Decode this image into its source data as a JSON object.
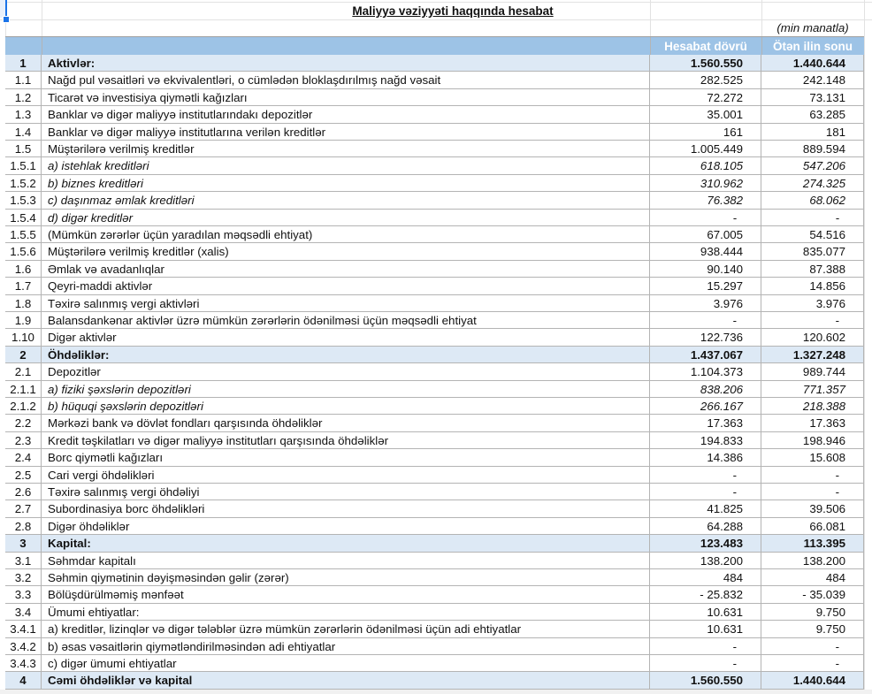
{
  "title": "Maliyyə vəziyyəti haqqında hesabat",
  "unit": "(min manatla)",
  "colors": {
    "header_bg": "#9dc3e6",
    "section_bg": "#dde9f5",
    "grid": "#b4b4b4"
  },
  "header": {
    "current": "Hesabat dövrü",
    "previous": "Ötən ilin sonu"
  },
  "rows": [
    {
      "num": "1",
      "label": "Aktivlər:",
      "current": "1.560.550",
      "previous": "1.440.644",
      "style": "section"
    },
    {
      "num": "1.1",
      "label": "Nağd pul vəsaitləri və  ekvivalentləri, o cümlədən bloklaşdırılmış nağd vəsait",
      "current": "282.525",
      "previous": "242.148"
    },
    {
      "num": "1.2",
      "label": "Ticarət və investisiya qiymətli kağızları",
      "current": "72.272",
      "previous": "73.131"
    },
    {
      "num": "1.3",
      "label": "Banklar və digər maliyyə institutlarındakı depozitlər",
      "current": "35.001",
      "previous": "63.285"
    },
    {
      "num": "1.4",
      "label": "Banklar və digər maliyyə institutlarına verilən kreditlər",
      "current": "161",
      "previous": "181"
    },
    {
      "num": "1.5",
      "label": "Müştərilərə verilmiş kreditlər",
      "current": "1.005.449",
      "previous": "889.594"
    },
    {
      "num": "1.5.1",
      "label": "a) istehlak kreditləri",
      "current": "618.105",
      "previous": "547.206",
      "style": "italic"
    },
    {
      "num": "1.5.2",
      "label": "b) biznes kreditləri",
      "current": "310.962",
      "previous": "274.325",
      "style": "italic"
    },
    {
      "num": "1.5.3",
      "label": "c) daşınmaz əmlak kreditləri",
      "current": "76.382",
      "previous": "68.062",
      "style": "italic"
    },
    {
      "num": "1.5.4",
      "label": "d) digər kreditlər",
      "current": "-",
      "previous": "-",
      "style": "italic"
    },
    {
      "num": "1.5.5",
      "label": "(Mümkün zərərlər üçün yaradılan məqsədli ehtiyat)",
      "current": "67.005",
      "previous": "54.516"
    },
    {
      "num": "1.5.6",
      "label": "Müştərilərə verilmiş kreditlər (xalis)",
      "current": "938.444",
      "previous": "835.077"
    },
    {
      "num": "1.6",
      "label": "Əmlak və avadanlıqlar",
      "current": "90.140",
      "previous": "87.388"
    },
    {
      "num": "1.7",
      "label": "Qeyri-maddi aktivlər",
      "current": "15.297",
      "previous": "14.856"
    },
    {
      "num": "1.8",
      "label": "Təxirə salınmış vergi aktivləri",
      "current": "3.976",
      "previous": "3.976"
    },
    {
      "num": "1.9",
      "label": "Balansdankənar aktivlər üzrə mümkün zərərlərin ödənilməsi üçün məqsədli ehtiyat",
      "current": "-",
      "previous": "-"
    },
    {
      "num": "1.10",
      "label": "Digər aktivlər",
      "current": "122.736",
      "previous": "120.602"
    },
    {
      "num": "2",
      "label": "Öhdəliklər:",
      "current": "1.437.067",
      "previous": "1.327.248",
      "style": "section"
    },
    {
      "num": "2.1",
      "label": "Depozitlər",
      "current": "1.104.373",
      "previous": "989.744"
    },
    {
      "num": "2.1.1",
      "label": "a) fiziki şəxslərin depozitləri",
      "current": "838.206",
      "previous": "771.357",
      "style": "italic"
    },
    {
      "num": "2.1.2",
      "label": "b) hüquqi şəxslərin depozitləri",
      "current": "266.167",
      "previous": "218.388",
      "style": "italic"
    },
    {
      "num": "2.2",
      "label": "Mərkəzi bank və dövlət fondları qarşısında öhdəliklər",
      "current": "17.363",
      "previous": "17.363"
    },
    {
      "num": "2.3",
      "label": "Kredit təşkilatları və digər maliyyə institutları qarşısında öhdəliklər",
      "current": "194.833",
      "previous": "198.946"
    },
    {
      "num": "2.4",
      "label": "Borc qiymətli kağızları",
      "current": "14.386",
      "previous": "15.608"
    },
    {
      "num": "2.5",
      "label": "Cari vergi öhdəlikləri",
      "current": "-",
      "previous": "-"
    },
    {
      "num": "2.6",
      "label": "Təxirə salınmış vergi öhdəliyi",
      "current": "-",
      "previous": "-"
    },
    {
      "num": "2.7",
      "label": "Subordinasiya borc öhdəlikləri",
      "current": "41.825",
      "previous": "39.506"
    },
    {
      "num": "2.8",
      "label": "Digər öhdəliklər",
      "current": "64.288",
      "previous": "66.081"
    },
    {
      "num": "3",
      "label": "Kapital:",
      "current": "123.483",
      "previous": "113.395",
      "style": "section"
    },
    {
      "num": "3.1",
      "label": "Səhmdar kapitalı",
      "current": "138.200",
      "previous": "138.200"
    },
    {
      "num": "3.2",
      "label": "Səhmin qiymətinin dəyişməsindən gəlir (zərər)",
      "current": "484",
      "previous": "484"
    },
    {
      "num": "3.3",
      "label": "Bölüşdürülməmiş mənfəət",
      "current": "- 25.832",
      "previous": "- 35.039"
    },
    {
      "num": "3.4",
      "label": "Ümumi ehtiyatlar:",
      "current": "10.631",
      "previous": "9.750"
    },
    {
      "num": "3.4.1",
      "label": "a) kreditlər, lizinqlər və digər tələblər üzrə mümkün zərərlərin ödənilməsi üçün adi ehtiyatlar",
      "current": "10.631",
      "previous": "9.750"
    },
    {
      "num": "3.4.2",
      "label": "b) əsas vəsaitlərin qiymətləndirilməsindən adi ehtiyatlar",
      "current": "-",
      "previous": "-"
    },
    {
      "num": "3.4.3",
      "label": "c) digər ümumi ehtiyatlar",
      "current": "-",
      "previous": "-"
    },
    {
      "num": "4",
      "label": "Cəmi öhdəliklər və kapital",
      "current": "1.560.550",
      "previous": "1.440.644",
      "style": "section"
    }
  ]
}
